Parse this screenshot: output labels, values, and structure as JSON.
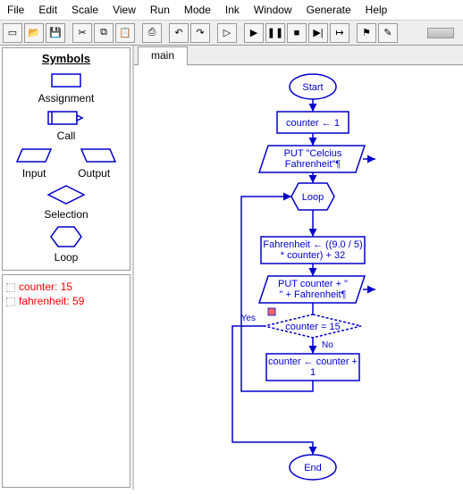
{
  "menu": [
    "File",
    "Edit",
    "Scale",
    "View",
    "Run",
    "Mode",
    "Ink",
    "Window",
    "Generate",
    "Help"
  ],
  "toolbar_icons": [
    "new",
    "open",
    "save",
    "cut",
    "copy",
    "paste",
    "print",
    "undo",
    "redo",
    "run",
    "play",
    "pause",
    "stop",
    "step",
    "step-over",
    "marker",
    "pencil"
  ],
  "symbols": {
    "title": "Symbols",
    "items": {
      "assignment": "Assignment",
      "call": "Call",
      "input": "Input",
      "output": "Output",
      "selection": "Selection",
      "loop": "Loop"
    }
  },
  "variables": [
    {
      "name": "counter",
      "value": "15"
    },
    {
      "name": "fahrenheit",
      "value": "59"
    }
  ],
  "tab": "main",
  "flowchart": {
    "colors": {
      "stroke": "#0000cc",
      "fill": "#ffffff",
      "text": "#0000cc"
    },
    "start": "Start",
    "n1": "counter ← 1",
    "n2a": "PUT \"Celcius",
    "n2b": "Fahrenheit\"¶",
    "loop": "Loop",
    "n3a": "Fahrenheit ← ((9.0 / 5)",
    "n3b": "* counter) + 32",
    "n4a": "PUT counter + \"",
    "n4b": "\"  + Fahrenheit¶",
    "cond": "counter = 15",
    "yes": "Yes",
    "no": "No",
    "n5a": "counter ← counter +",
    "n5b": "1",
    "end": "End"
  }
}
